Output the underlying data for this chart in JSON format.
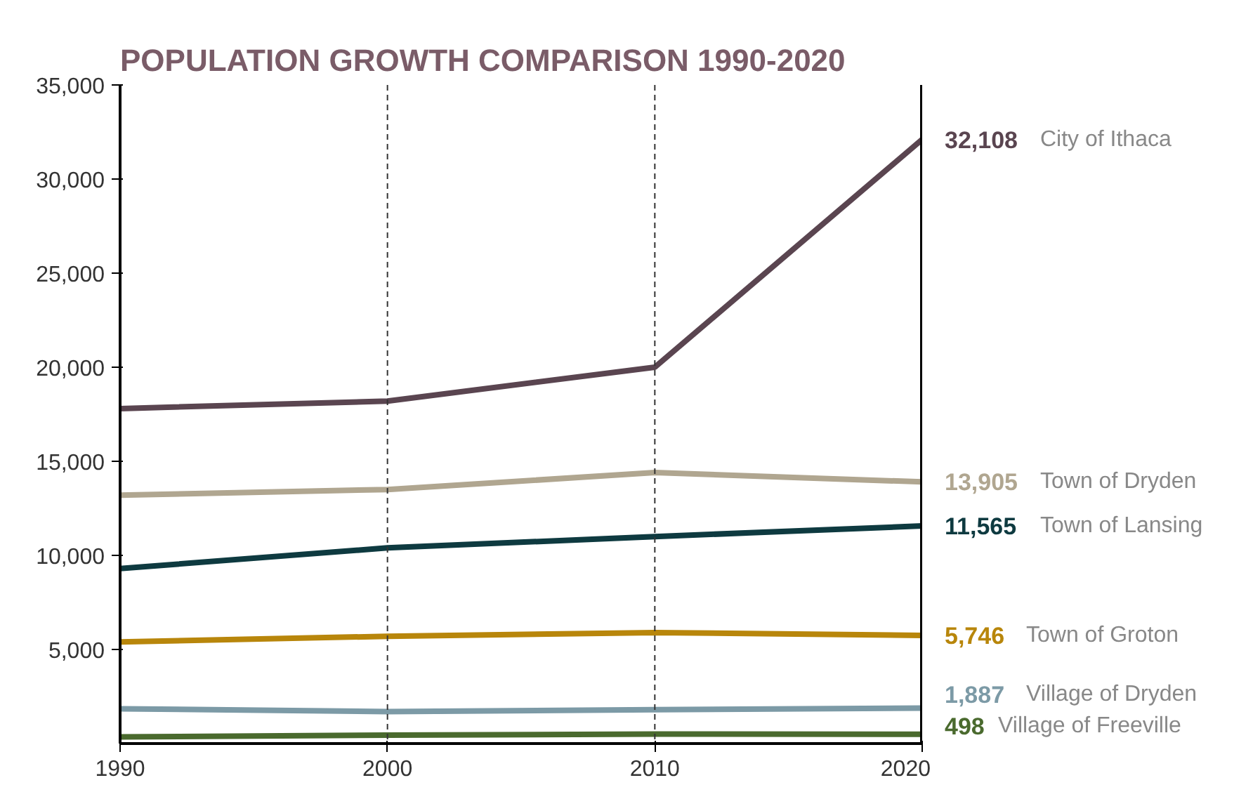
{
  "chart_data": {
    "type": "line",
    "title": "POPULATION GROWTH COMPARISON 1990-2020",
    "x": [
      1990,
      2000,
      2010,
      2020
    ],
    "series": [
      {
        "name": "City of Ithaca",
        "color": "#5a4550",
        "values": [
          17800,
          18200,
          20000,
          32108
        ],
        "value_labels": [
          null,
          null,
          null,
          "32,108"
        ]
      },
      {
        "name": "Town of Dryden",
        "color": "#b0a690",
        "values": [
          13200,
          13500,
          14400,
          13905
        ],
        "value_labels": [
          null,
          null,
          null,
          "13,905"
        ]
      },
      {
        "name": "Town of Lansing",
        "color": "#0e3a40",
        "values": [
          9300,
          10400,
          11000,
          11565
        ],
        "value_labels": [
          null,
          null,
          null,
          "11,565"
        ]
      },
      {
        "name": "Town of Groton",
        "color": "#b8860b",
        "values": [
          5400,
          5700,
          5900,
          5746
        ],
        "value_labels": [
          null,
          null,
          null,
          "5,746"
        ]
      },
      {
        "name": "Village of Dryden",
        "color": "#7c9aa6",
        "values": [
          1850,
          1700,
          1800,
          1887
        ],
        "value_labels": [
          null,
          null,
          null,
          "1,887"
        ]
      },
      {
        "name": "Village of Freeville",
        "color": "#4a6a2e",
        "values": [
          350,
          450,
          500,
          498
        ],
        "value_labels": [
          null,
          null,
          null,
          "498"
        ]
      }
    ],
    "xlim": [
      1990,
      2020
    ],
    "xticks": [
      1990,
      2000,
      2010,
      2020
    ],
    "ylim": [
      0,
      35000
    ],
    "yticks": [
      {
        "value": 5000,
        "label": "5,000"
      },
      {
        "value": 10000,
        "label": "10,000"
      },
      {
        "value": 15000,
        "label": "15,000"
      },
      {
        "value": 20000,
        "label": "20,000"
      },
      {
        "value": 25000,
        "label": "25,000"
      },
      {
        "value": 30000,
        "label": "30,000"
      },
      {
        "value": 35000,
        "label": "35,000"
      }
    ],
    "ref_lines": [
      {
        "axis": "x",
        "value": 2000,
        "color": "#333333",
        "line_style": "dashed"
      },
      {
        "axis": "x",
        "value": 2010,
        "color": "#333333",
        "line_style": "dashed"
      },
      {
        "axis": "x",
        "value": 2020,
        "color": "#000000",
        "line_style": "solid"
      }
    ],
    "grid": false,
    "line_style": "solid",
    "marker": "none"
  }
}
